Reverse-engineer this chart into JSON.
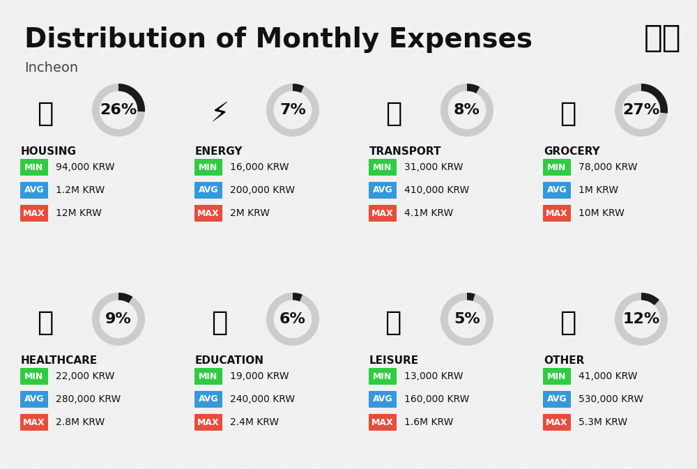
{
  "title": "Distribution of Monthly Expenses",
  "subtitle": "Incheon",
  "background_color": "#f0f0f0",
  "categories": [
    {
      "name": "HOUSING",
      "percent": 26,
      "min": "94,000 KRW",
      "avg": "1.2M KRW",
      "max": "12M KRW",
      "row": 0,
      "col": 0
    },
    {
      "name": "ENERGY",
      "percent": 7,
      "min": "16,000 KRW",
      "avg": "200,000 KRW",
      "max": "2M KRW",
      "row": 0,
      "col": 1
    },
    {
      "name": "TRANSPORT",
      "percent": 8,
      "min": "31,000 KRW",
      "avg": "410,000 KRW",
      "max": "4.1M KRW",
      "row": 0,
      "col": 2
    },
    {
      "name": "GROCERY",
      "percent": 27,
      "min": "78,000 KRW",
      "avg": "1M KRW",
      "max": "10M KRW",
      "row": 0,
      "col": 3
    },
    {
      "name": "HEALTHCARE",
      "percent": 9,
      "min": "22,000 KRW",
      "avg": "280,000 KRW",
      "max": "2.8M KRW",
      "row": 1,
      "col": 0
    },
    {
      "name": "EDUCATION",
      "percent": 6,
      "min": "19,000 KRW",
      "avg": "240,000 KRW",
      "max": "2.4M KRW",
      "row": 1,
      "col": 1
    },
    {
      "name": "LEISURE",
      "percent": 5,
      "min": "13,000 KRW",
      "avg": "160,000 KRW",
      "max": "1.6M KRW",
      "row": 1,
      "col": 2
    },
    {
      "name": "OTHER",
      "percent": 12,
      "min": "41,000 KRW",
      "avg": "530,000 KRW",
      "max": "5.3M KRW",
      "row": 1,
      "col": 3
    }
  ],
  "min_color": "#2ecc40",
  "avg_color": "#3498db",
  "max_color": "#e74c3c",
  "label_text_color": "#ffffff",
  "arc_color_filled": "#1a1a1a",
  "arc_color_empty": "#cccccc",
  "title_fontsize": 28,
  "subtitle_fontsize": 14,
  "category_fontsize": 11,
  "value_fontsize": 10,
  "percent_fontsize": 16
}
